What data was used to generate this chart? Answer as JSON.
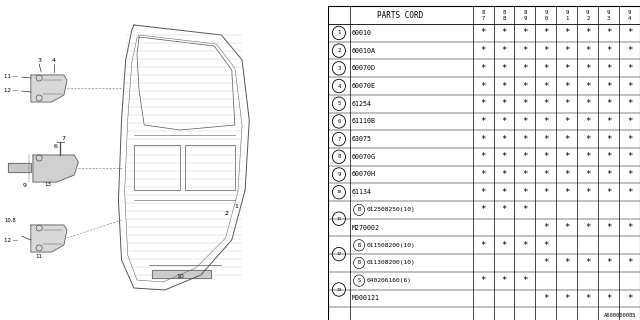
{
  "bg_color": "#ffffff",
  "footer": "A600000085",
  "year_cols": [
    "8\n7",
    "8\n8",
    "8\n9",
    "9\n0",
    "9\n1",
    "9\n2",
    "9\n3",
    "9\n4"
  ],
  "num_labels": [
    "1",
    "2",
    "3",
    "4",
    "5",
    "6",
    "7",
    "8",
    "9",
    "10",
    "11",
    "",
    "12",
    "",
    "13",
    ""
  ],
  "group_spans": {
    "0": 1,
    "1": 1,
    "2": 1,
    "3": 1,
    "4": 1,
    "5": 1,
    "6": 1,
    "7": 1,
    "8": 1,
    "9": 1,
    "10": 2,
    "12": 2,
    "14": 2
  },
  "parts": [
    "60010",
    "60010A",
    "60070D",
    "60070E",
    "61254",
    "61110B",
    "63075",
    "60070G",
    "60070H",
    "61134",
    "B012508250(10)",
    "M270002",
    "B011508200(10)",
    "B011308200(10)",
    "S040206160(6)",
    "M000121"
  ],
  "marks": [
    [
      1,
      1,
      1,
      1,
      1,
      1,
      1,
      1
    ],
    [
      1,
      1,
      1,
      1,
      1,
      1,
      1,
      1
    ],
    [
      1,
      1,
      1,
      1,
      1,
      1,
      1,
      1
    ],
    [
      1,
      1,
      1,
      1,
      1,
      1,
      1,
      1
    ],
    [
      1,
      1,
      1,
      1,
      1,
      1,
      1,
      1
    ],
    [
      1,
      1,
      1,
      1,
      1,
      1,
      1,
      1
    ],
    [
      1,
      1,
      1,
      1,
      1,
      1,
      1,
      1
    ],
    [
      1,
      1,
      1,
      1,
      1,
      1,
      1,
      1
    ],
    [
      1,
      1,
      1,
      1,
      1,
      1,
      1,
      1
    ],
    [
      1,
      1,
      1,
      1,
      1,
      1,
      1,
      1
    ],
    [
      1,
      1,
      1,
      0,
      0,
      0,
      0,
      0
    ],
    [
      0,
      0,
      0,
      1,
      1,
      1,
      1,
      1
    ],
    [
      1,
      1,
      1,
      1,
      0,
      0,
      0,
      0
    ],
    [
      0,
      0,
      0,
      1,
      1,
      1,
      1,
      1
    ],
    [
      1,
      1,
      1,
      0,
      0,
      0,
      0,
      0
    ],
    [
      0,
      0,
      0,
      1,
      1,
      1,
      1,
      1
    ]
  ]
}
